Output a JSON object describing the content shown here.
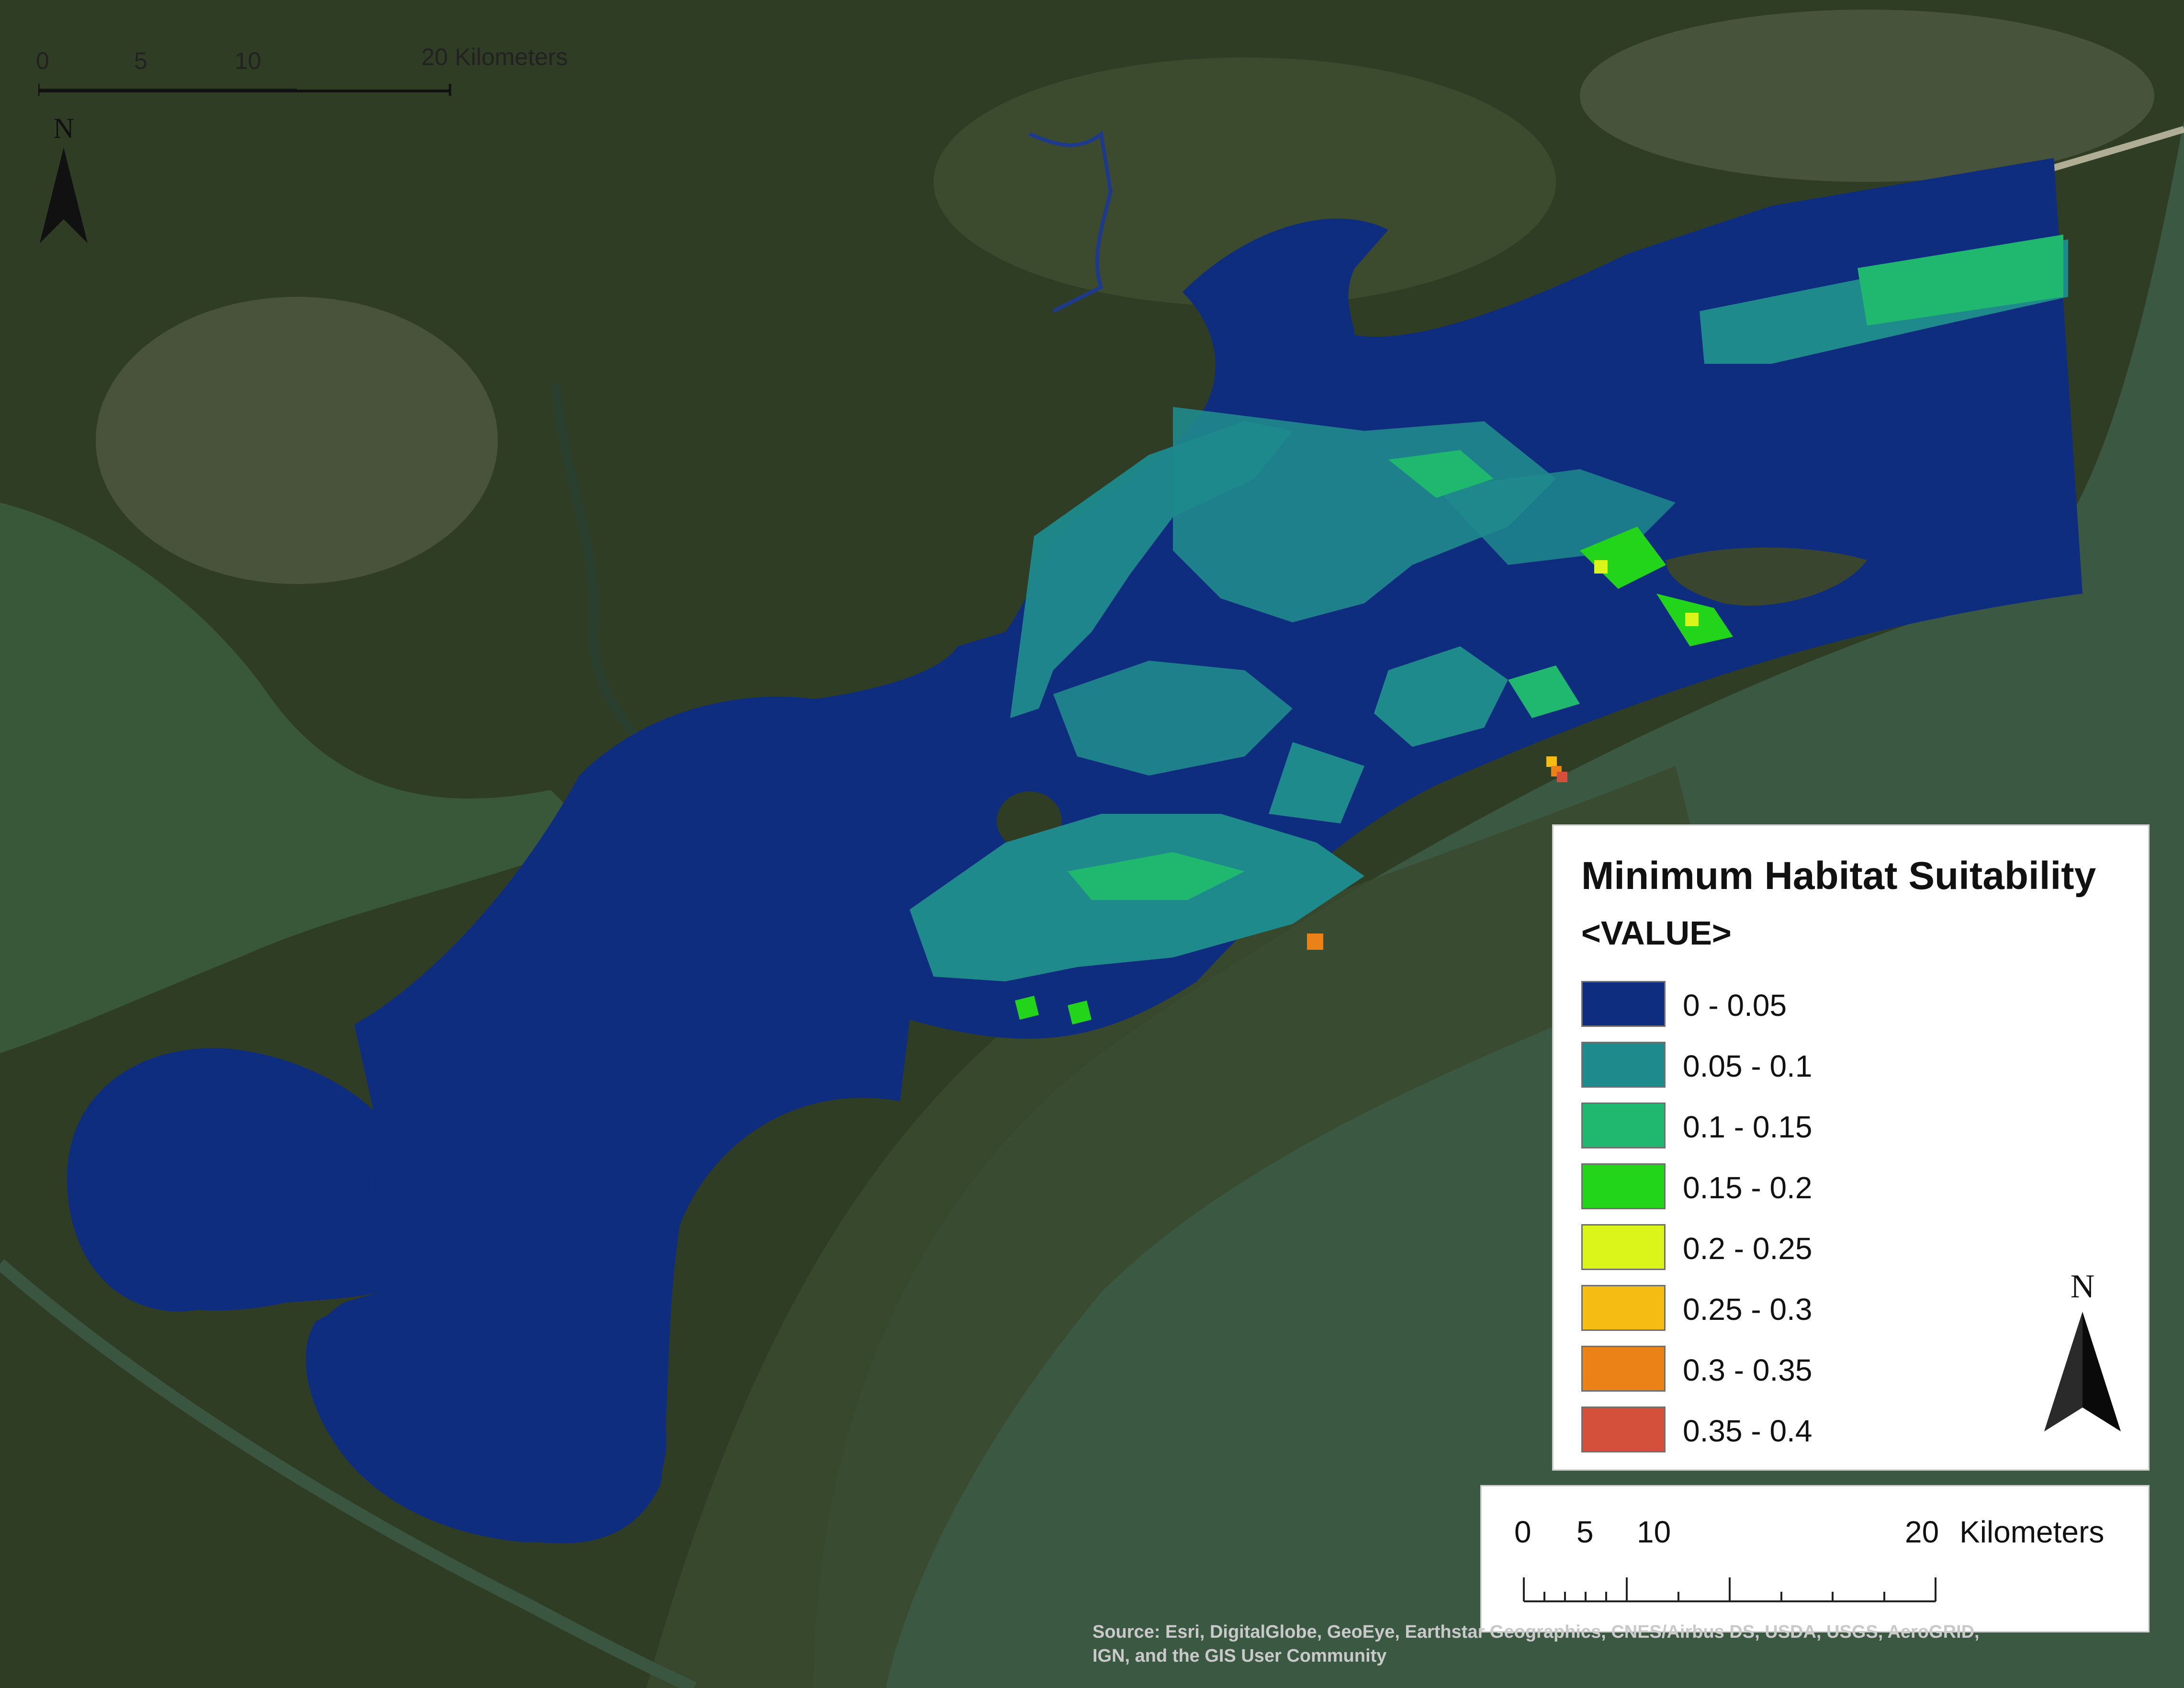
{
  "legend": {
    "title": "Minimum Habitat Suitability",
    "field": "<VALUE>",
    "classes": [
      {
        "label": "0 - 0.05",
        "color": "#0f2d7e"
      },
      {
        "label": "0.05 - 0.1",
        "color": "#1f8a8c"
      },
      {
        "label": "0.1 - 0.15",
        "color": "#1fb86e"
      },
      {
        "label": "0.15 - 0.2",
        "color": "#22d51a"
      },
      {
        "label": "0.2 - 0.25",
        "color": "#dbf51a"
      },
      {
        "label": "0.25 - 0.3",
        "color": "#f5bd14"
      },
      {
        "label": "0.3 - 0.35",
        "color": "#ea8218"
      },
      {
        "label": "0.35 - 0.4",
        "color": "#d4503a"
      }
    ]
  },
  "north_arrow": {
    "label": "N"
  },
  "scale_bar": {
    "ticks": [
      "0",
      "5",
      "10",
      "20"
    ],
    "unit": "Kilometers"
  },
  "attribution": {
    "line1": "Source: Esri, DigitalGlobe, GeoEye, Earthstar Geographics, CNES/Airbus DS, USDA, USGS, AeroGRID,",
    "line2": "IGN, and the GIS User Community"
  },
  "colors": {
    "land_dark": "#27341f",
    "land_mid": "#3c4a2c",
    "land_light": "#56613e",
    "sea_green": "#3f5b43",
    "water_class": "#0f2d7e"
  }
}
